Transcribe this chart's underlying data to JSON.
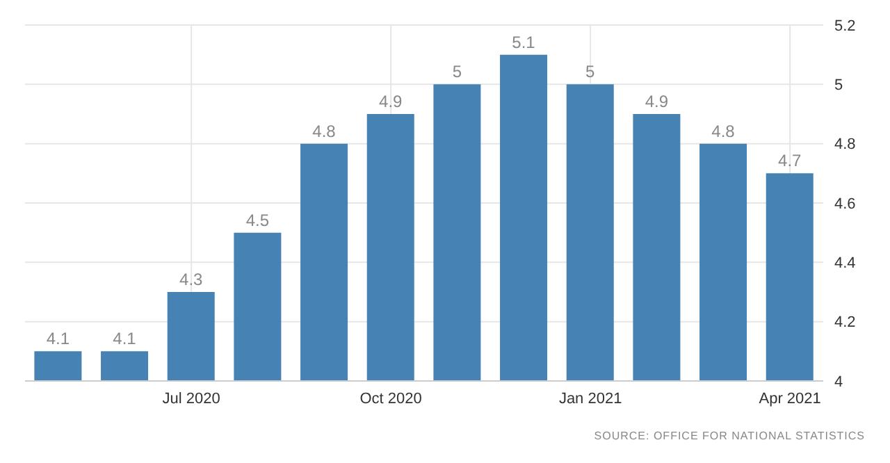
{
  "chart_data": {
    "type": "bar",
    "categories": [
      null,
      null,
      "Jul 2020",
      null,
      null,
      "Oct 2020",
      null,
      null,
      "Jan 2021",
      null,
      null,
      "Apr 2021"
    ],
    "values": [
      4.1,
      4.1,
      4.3,
      4.5,
      4.8,
      4.9,
      5,
      5.1,
      5,
      4.9,
      4.8,
      4.7
    ],
    "color": "#4682b4",
    "ylim": [
      4,
      5.2
    ],
    "yticks": [
      4,
      4.2,
      4.4,
      4.6,
      4.8,
      5,
      5.2
    ],
    "grid": true,
    "data_labels": true,
    "annotations": [
      "SOURCE: OFFICE FOR NATIONAL STATISTICS"
    ]
  }
}
